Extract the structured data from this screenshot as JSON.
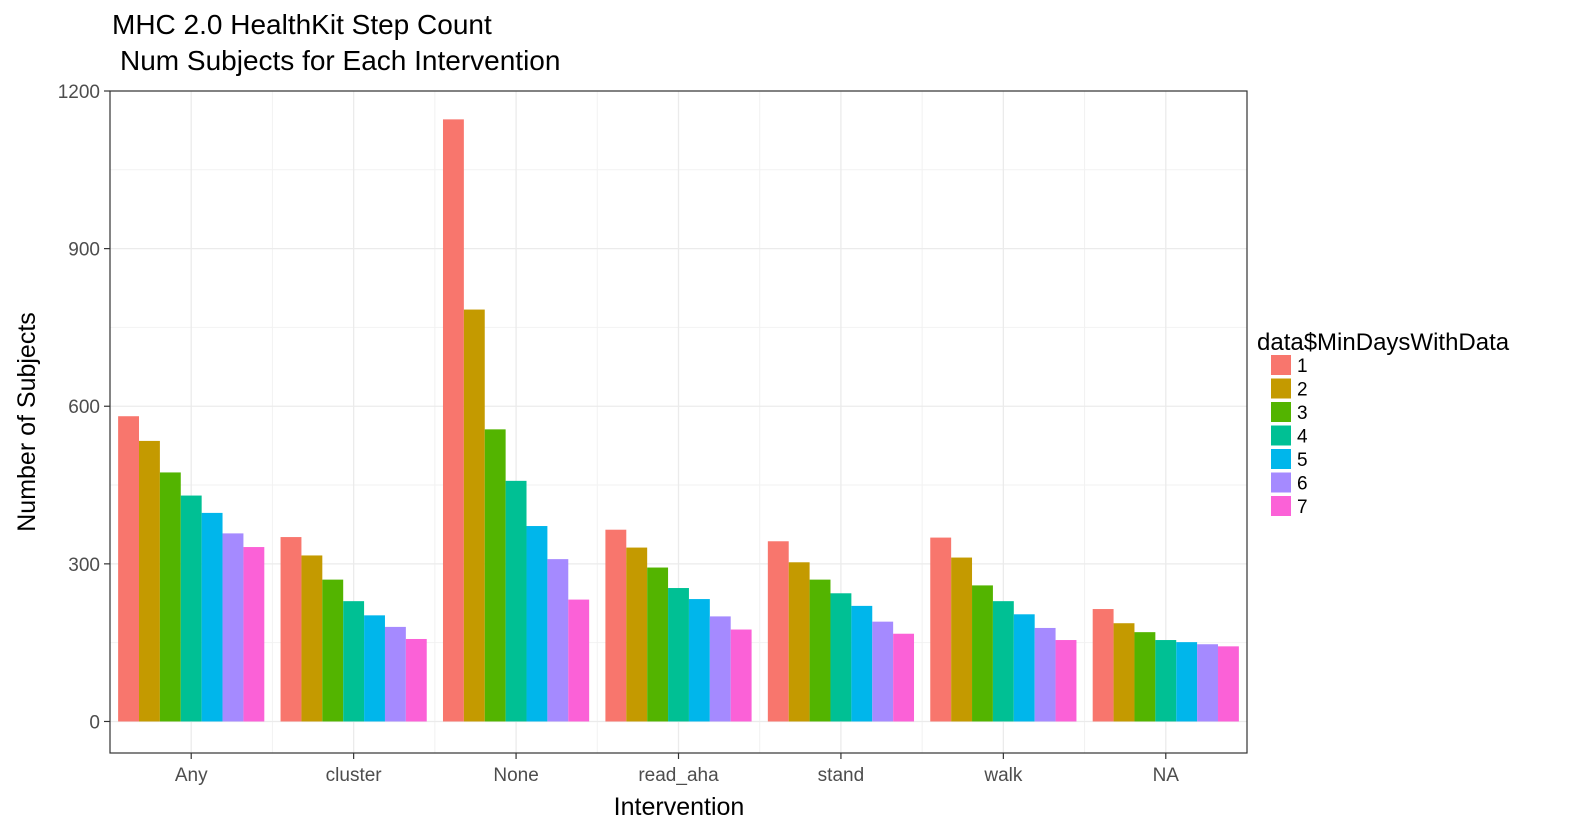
{
  "chart_data": {
    "type": "bar",
    "title": "MHC 2.0 HealthKit Step Count",
    "subtitle": "Num Subjects for Each Intervention",
    "xlabel": "Intervention",
    "ylabel": "Number of Subjects",
    "categories": [
      "Any",
      "cluster",
      "None",
      "read_aha",
      "stand",
      "walk",
      "NA"
    ],
    "ylim": [
      -60,
      1200
    ],
    "yticks": [
      0,
      300,
      600,
      900,
      1200
    ],
    "grid": true,
    "legend": {
      "title": "data$MinDaysWithData",
      "placement": "right"
    },
    "series": [
      {
        "name": "1",
        "color": "#F8766D",
        "values": [
          581,
          351,
          1146,
          365,
          343,
          350,
          214
        ]
      },
      {
        "name": "2",
        "color": "#C49A00",
        "values": [
          534,
          316,
          784,
          331,
          303,
          312,
          187
        ]
      },
      {
        "name": "3",
        "color": "#53B400",
        "values": [
          474,
          270,
          556,
          293,
          270,
          259,
          170
        ]
      },
      {
        "name": "4",
        "color": "#00C094",
        "values": [
          430,
          229,
          458,
          254,
          244,
          229,
          155
        ]
      },
      {
        "name": "5",
        "color": "#00B6EB",
        "values": [
          397,
          202,
          372,
          233,
          220,
          204,
          151
        ]
      },
      {
        "name": "6",
        "color": "#A58AFF",
        "values": [
          358,
          180,
          309,
          200,
          190,
          178,
          147
        ]
      },
      {
        "name": "7",
        "color": "#FB61D7",
        "values": [
          332,
          157,
          232,
          175,
          167,
          155,
          143
        ]
      }
    ]
  }
}
